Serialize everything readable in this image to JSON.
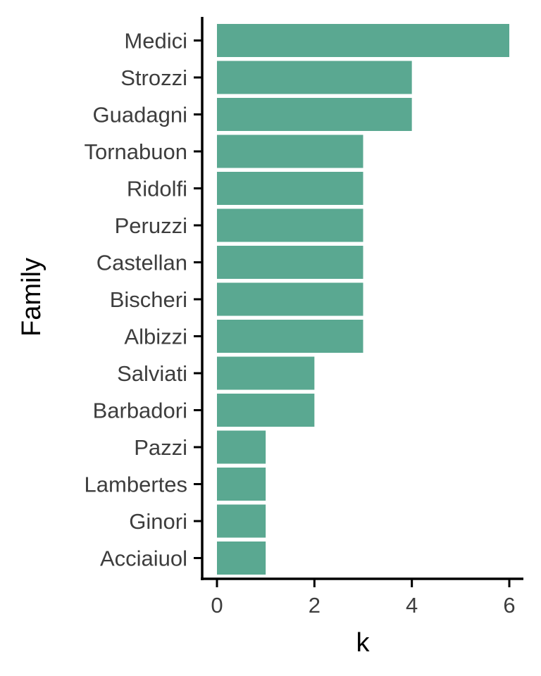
{
  "chart_data": {
    "type": "bar",
    "orientation": "horizontal",
    "categories": [
      "Medici",
      "Strozzi",
      "Guadagni",
      "Tornabuon",
      "Ridolfi",
      "Peruzzi",
      "Castellan",
      "Bischeri",
      "Albizzi",
      "Salviati",
      "Barbadori",
      "Pazzi",
      "Lambertes",
      "Ginori",
      "Acciaiuol"
    ],
    "values": [
      6,
      4,
      4,
      3,
      3,
      3,
      3,
      3,
      3,
      2,
      2,
      1,
      1,
      1,
      1
    ],
    "xlabel": "k",
    "ylabel": "Family",
    "xlim": [
      0,
      6
    ],
    "xticks": [
      "0",
      "2",
      "4",
      "6"
    ],
    "grid": false,
    "bar_color": "#5aa891"
  }
}
